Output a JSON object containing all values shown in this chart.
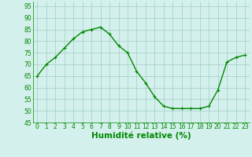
{
  "x": [
    0,
    1,
    2,
    3,
    4,
    5,
    6,
    7,
    8,
    9,
    10,
    11,
    12,
    13,
    14,
    15,
    16,
    17,
    18,
    19,
    20,
    21,
    22,
    23
  ],
  "y": [
    65,
    70,
    73,
    77,
    81,
    84,
    85,
    86,
    83,
    78,
    75,
    67,
    62,
    56,
    52,
    51,
    51,
    51,
    51,
    52,
    59,
    71,
    73,
    74
  ],
  "line_color": "#008800",
  "marker": "+",
  "background_color": "#d4f0ec",
  "grid_color": "#a0ccc4",
  "xlabel": "Humidité relative (%)",
  "xlabel_color": "#008800",
  "ylim": [
    45,
    97
  ],
  "yticks": [
    45,
    50,
    55,
    60,
    65,
    70,
    75,
    80,
    85,
    90,
    95
  ],
  "xticks": [
    0,
    1,
    2,
    3,
    4,
    5,
    6,
    7,
    8,
    9,
    10,
    11,
    12,
    13,
    14,
    15,
    16,
    17,
    18,
    19,
    20,
    21,
    22,
    23
  ],
  "tick_fontsize": 5.5,
  "xlabel_fontsize": 7.5,
  "linewidth": 1.0,
  "markersize": 3.5
}
